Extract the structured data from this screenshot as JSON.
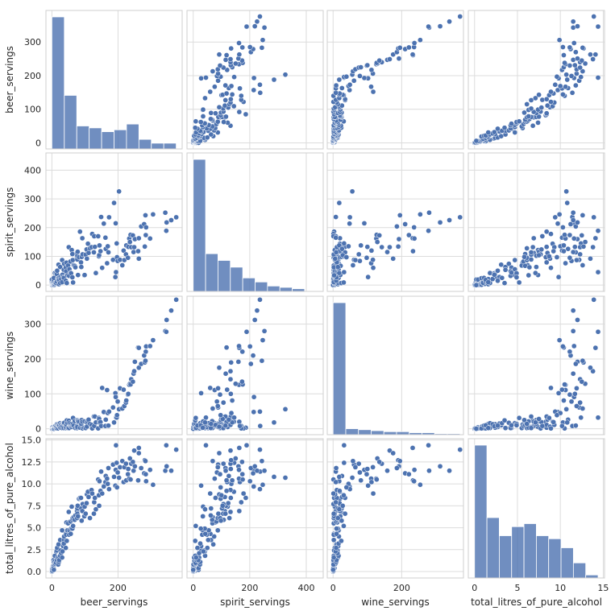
{
  "chart_data": {
    "type": "pairplot",
    "title": "",
    "variables": [
      "beer_servings",
      "spirit_servings",
      "wine_servings",
      "total_litres_of_pure_alcohol"
    ],
    "axis_labels": {
      "x": [
        "beer_servings",
        "spirit_servings",
        "wine_servings",
        "total_litres_of_pure_alcohol"
      ],
      "y": [
        "beer_servings",
        "spirit_servings",
        "wine_servings",
        "total_litres_of_pure_alcohol"
      ]
    },
    "ranges": {
      "beer_servings": [
        -18,
        394
      ],
      "spirit_servings": [
        -22,
        460
      ],
      "wine_servings": [
        -17,
        380
      ],
      "total_litres_of_pure_alcohol": [
        -0.73,
        15.15
      ]
    },
    "ticks": {
      "x": [
        {
          "values": [
            0,
            200
          ],
          "labels": [
            "0",
            "200"
          ]
        },
        {
          "values": [
            0,
            200,
            400
          ],
          "labels": [
            "0",
            "200",
            "400"
          ]
        },
        {
          "values": [
            0,
            200
          ],
          "labels": [
            "0",
            "200"
          ]
        },
        {
          "values": [
            0,
            5,
            10,
            15
          ],
          "labels": [
            "0",
            "5",
            "10",
            "15"
          ]
        }
      ],
      "y": [
        {
          "values": [
            0,
            100,
            200,
            300
          ],
          "labels": [
            "0",
            "100",
            "200",
            "300"
          ]
        },
        {
          "values": [
            0,
            100,
            200,
            300,
            400
          ],
          "labels": [
            "0",
            "100",
            "200",
            "300",
            "400"
          ]
        },
        {
          "values": [
            0,
            100,
            200,
            300
          ],
          "labels": [
            "0",
            "100",
            "200",
            "300"
          ]
        },
        {
          "values": [
            0,
            2.5,
            5,
            7.5,
            10,
            12.5,
            15
          ],
          "labels": [
            "0.0",
            "2.5",
            "5.0",
            "7.5",
            "10.0",
            "12.5",
            "15.0"
          ]
        }
      ]
    },
    "histograms": [
      {
        "variable": "beer_servings",
        "bin_edges": [
          0,
          37.6,
          75.2,
          112.8,
          150.4,
          188,
          225.6,
          263.2,
          300.8,
          338.4,
          376
        ],
        "counts": [
          69,
          28,
          12,
          11,
          9,
          10,
          13,
          5,
          3,
          3
        ]
      },
      {
        "variable": "spirit_servings",
        "bin_edges": [
          0,
          43.8,
          87.6,
          131.4,
          175.2,
          219,
          262.8,
          306.6,
          350.4,
          394.2,
          438
        ],
        "counts": [
          98,
          28,
          23,
          18,
          10,
          7,
          4,
          3,
          2,
          0
        ]
      },
      {
        "variable": "wine_servings",
        "bin_edges": [
          0,
          37,
          74,
          111,
          148,
          185,
          222,
          259,
          296,
          333,
          370
        ],
        "counts": [
          132,
          6,
          5,
          4,
          3,
          3,
          2,
          2,
          1,
          1
        ]
      },
      {
        "variable": "total_litres_of_pure_alcohol",
        "bin_edges": [
          0,
          1.44,
          2.88,
          4.32,
          5.76,
          7.2,
          8.64,
          10.08,
          11.52,
          12.96,
          14.4
        ],
        "counts": [
          44,
          20,
          14,
          17,
          18,
          14,
          13,
          10,
          5,
          1
        ]
      }
    ],
    "scatter_points": {
      "beer_servings": [
        0,
        0,
        0,
        0,
        0,
        0,
        0,
        0,
        0,
        0,
        0,
        0,
        0,
        0,
        0,
        1,
        1,
        2,
        3,
        4,
        5,
        5,
        5,
        6,
        6,
        8,
        9,
        9,
        10,
        12,
        13,
        15,
        15,
        16,
        17,
        19,
        20,
        21,
        21,
        22,
        25,
        25,
        26,
        28,
        31,
        31,
        32,
        34,
        36,
        36,
        37,
        42,
        42,
        43,
        44,
        45,
        47,
        49,
        51,
        52,
        53,
        56,
        57,
        58,
        60,
        62,
        62,
        63,
        64,
        66,
        69,
        71,
        76,
        76,
        77,
        77,
        78,
        79,
        82,
        85,
        88,
        89,
        90,
        92,
        93,
        98,
        99,
        102,
        105,
        106,
        109,
        111,
        115,
        120,
        122,
        127,
        128,
        130,
        133,
        140,
        142,
        143,
        144,
        147,
        149,
        152,
        157,
        162,
        163,
        167,
        169,
        171,
        173,
        185,
        188,
        192,
        193,
        194,
        196,
        197,
        199,
        203,
        206,
        213,
        217,
        219,
        224,
        225,
        230,
        231,
        234,
        236,
        238,
        240,
        245,
        247,
        249,
        251,
        261,
        263,
        263,
        270,
        279,
        281,
        283,
        284,
        285,
        297,
        306,
        343,
        346,
        347,
        361,
        376
      ],
      "spirit_servings": [
        0,
        0,
        0,
        2,
        3,
        5,
        8,
        3,
        1,
        11,
        19,
        0,
        6,
        1,
        3,
        0,
        3,
        4,
        2,
        1,
        3,
        14,
        19,
        25,
        0,
        1,
        4,
        42,
        8,
        8,
        41,
        12,
        38,
        50,
        21,
        24,
        71,
        25,
        3,
        18,
        63,
        7,
        29,
        21,
        87,
        10,
        36,
        28,
        53,
        25,
        74,
        61,
        15,
        48,
        78,
        7,
        34,
        68,
        132,
        32,
        55,
        82,
        43,
        41,
        122,
        27,
        108,
        87,
        9,
        69,
        67,
        62,
        95,
        112,
        89,
        102,
        116,
        35,
        97,
        186,
        79,
        63,
        98,
        163,
        107,
        34,
        35,
        106,
        124,
        92,
        144,
        112,
        128,
        132,
        178,
        114,
        170,
        133,
        42,
        170,
        100,
        104,
        138,
        118,
        237,
        60,
        214,
        165,
        126,
        76,
        135,
        114,
        236,
        88,
        286,
        28,
        215,
        45,
        145,
        97,
        84,
        326,
        88,
        69,
        120,
        87,
        107,
        138,
        95,
        133,
        162,
        150,
        175,
        132,
        173,
        115,
        132,
        160,
        118,
        163,
        92,
        204,
        212,
        134,
        243,
        174,
        201,
        162,
        246,
        252,
        189,
        218,
        226,
        236
      ],
      "wine_servings": [
        0,
        0,
        0,
        0,
        0,
        0,
        0,
        0,
        0,
        0,
        0,
        0,
        0,
        0,
        0,
        1,
        0,
        4,
        1,
        1,
        2,
        3,
        1,
        1,
        0,
        5,
        7,
        2,
        7,
        3,
        6,
        1,
        13,
        5,
        12,
        1,
        10,
        9,
        14,
        10,
        3,
        16,
        3,
        13,
        15,
        2,
        7,
        15,
        2,
        16,
        17,
        2,
        9,
        5,
        12,
        24,
        17,
        2,
        23,
        2,
        16,
        8,
        10,
        14,
        5,
        10,
        10,
        13,
        31,
        9,
        22,
        2,
        2,
        8,
        5,
        25,
        23,
        21,
        20,
        3,
        11,
        14,
        25,
        20,
        1,
        3,
        21,
        2,
        19,
        6,
        20,
        26,
        14,
        11,
        1,
        35,
        8,
        35,
        18,
        1,
        31,
        28,
        18,
        19,
        8,
        117,
        48,
        8,
        26,
        111,
        45,
        9,
        49,
        61,
        18,
        102,
        91,
        32,
        32,
        39,
        78,
        56,
        116,
        58,
        112,
        65,
        75,
        81,
        98,
        100,
        126,
        129,
        127,
        142,
        135,
        158,
        165,
        192,
        233,
        232,
        175,
        186,
        210,
        190,
        195,
        221,
        236,
        237,
        254,
        280,
        278,
        312,
        339,
        370
      ],
      "total_litres_of_pure_alcohol": [
        0,
        0,
        0,
        0,
        0.1,
        0.1,
        0.1,
        0.1,
        0.1,
        0.2,
        0.2,
        0.1,
        0.3,
        0.1,
        0.2,
        0.1,
        0.3,
        0.4,
        0.6,
        0.5,
        0.7,
        1.3,
        0.4,
        1.1,
        0.2,
        0.8,
        1.2,
        1.8,
        0.9,
        1,
        2.3,
        1.3,
        2.4,
        2.7,
        1.6,
        0.8,
        3.1,
        1.1,
        1.6,
        1.3,
        3.6,
        1.8,
        2.4,
        2.1,
        4.7,
        1.6,
        2.3,
        2.9,
        3.6,
        3.2,
        4,
        4.3,
        2.7,
        4.2,
        5.6,
        3.5,
        4.7,
        5.5,
        6.8,
        4.2,
        4.7,
        5.7,
        4.3,
        4.9,
        7.4,
        4.9,
        5.9,
        6.1,
        5.2,
        6.2,
        5.9,
        6.4,
        6.1,
        6.9,
        6.6,
        7.2,
        7.5,
        6.3,
        8.3,
        8.4,
        8.4,
        7.2,
        5.8,
        6.9,
        7.7,
        6.3,
        7.4,
        6.6,
        7.8,
        8.8,
        9.1,
        8.5,
        6.1,
        9.3,
        8.9,
        6.6,
        7.9,
        8.4,
        7.1,
        10.5,
        8.7,
        7.5,
        10.3,
        9.2,
        11.4,
        8.9,
        9.7,
        10.2,
        10.9,
        10.6,
        10,
        11.8,
        9.4,
        12.2,
        10.8,
        9.8,
        11.6,
        14.4,
        12.4,
        9.6,
        11.3,
        10.7,
        11.9,
        12.6,
        10.2,
        11.9,
        12.3,
        10.4,
        11.1,
        11.7,
        10.6,
        12.9,
        10.5,
        12.3,
        12.5,
        11.5,
        13.8,
        12,
        10.4,
        14.1,
        13.5,
        11.8,
        11.2,
        12.7,
        12.6,
        11.1,
        10.3,
        11.6,
        9.9,
        11.5,
        14.4,
        12,
        11.5,
        13.9
      ]
    },
    "point_color": "#4c72b0",
    "hist_color": "#4c72b0",
    "grid": true
  }
}
